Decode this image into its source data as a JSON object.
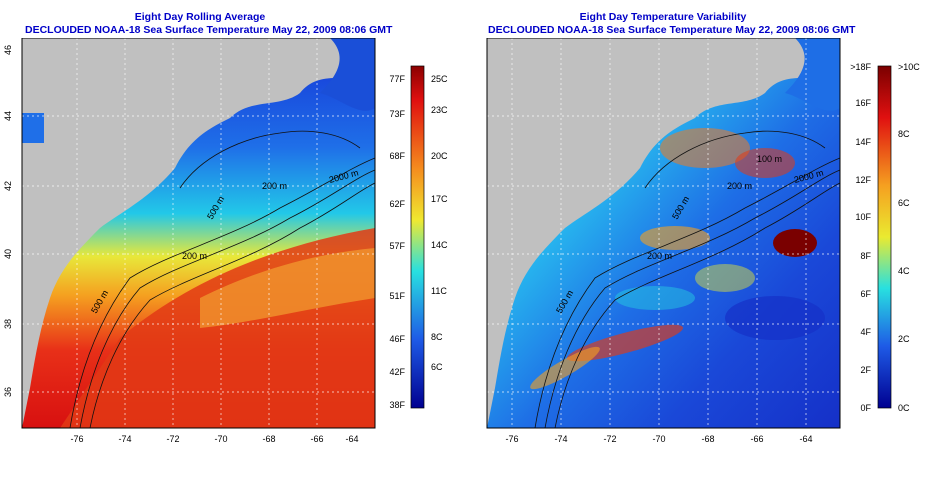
{
  "left_panel": {
    "title_line1": "Eight Day Rolling Average",
    "title_line2": "DECLOUDED NOAA-18 Sea Surface Temperature May 22, 2009 08:06 GMT",
    "colorbar": {
      "f_labels": [
        "77F",
        "73F",
        "68F",
        "62F",
        "57F",
        "51F",
        "46F",
        "42F",
        "38F"
      ],
      "c_labels": [
        "25C",
        "23C",
        "20C",
        "17C",
        "14C",
        "11C",
        "8C",
        "6C"
      ]
    },
    "contours": [
      "200 m",
      "200 m",
      "500 m",
      "2000 m",
      "500 m"
    ]
  },
  "right_panel": {
    "title_line1": "Eight Day Temperature Variability",
    "title_line2": "DECLOUDED NOAA-18 Sea Surface Temperature May 22, 2009 08:06 GMT",
    "colorbar": {
      "f_labels": [
        ">18F",
        "16F",
        "14F",
        "12F",
        "10F",
        "8F",
        "6F",
        "4F",
        "2F",
        "0F"
      ],
      "c_labels": [
        ">10C",
        "8C",
        "6C",
        "4C",
        "2C",
        "0C"
      ]
    },
    "contours": [
      "100 m",
      "2000 m",
      "200 m",
      "200 m",
      "500 m",
      "500 m"
    ]
  },
  "axes": {
    "x_ticks": [
      "-76",
      "-74",
      "-72",
      "-70",
      "-68",
      "-66",
      "-64"
    ],
    "y_ticks": [
      "46",
      "44",
      "42",
      "40",
      "38",
      "36"
    ]
  },
  "colors": {
    "title": "#0000c8",
    "land": "#c0c0c0"
  }
}
